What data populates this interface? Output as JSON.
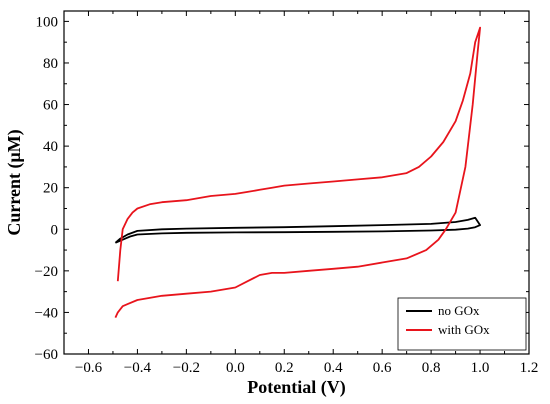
{
  "chart_data": {
    "type": "line",
    "xlabel": "Potential (V)",
    "ylabel": "Current (μM)",
    "xlim": [
      -0.7,
      1.2
    ],
    "ylim": [
      -60,
      105
    ],
    "xticks": [
      -0.6,
      -0.4,
      -0.2,
      0.0,
      0.2,
      0.4,
      0.6,
      0.8,
      1.0,
      1.2
    ],
    "xtick_labels": [
      "−0.6",
      "−0.4",
      "−0.2",
      "0.0",
      "0.2",
      "0.4",
      "0.6",
      "0.8",
      "1.0",
      "1.2"
    ],
    "yticks": [
      -60,
      -40,
      -20,
      0,
      20,
      40,
      60,
      80,
      100
    ],
    "ytick_labels": [
      "−60",
      "−40",
      "−20",
      "0",
      "20",
      "40",
      "60",
      "80",
      "100"
    ],
    "legend_position": "bottom-right",
    "grid": false,
    "series": [
      {
        "name": "no GOx",
        "color": "#000000",
        "x": [
          -0.49,
          -0.46,
          -0.43,
          -0.4,
          -0.3,
          -0.2,
          0.0,
          0.2,
          0.4,
          0.6,
          0.8,
          0.9,
          0.95,
          0.98,
          1.0,
          0.98,
          0.95,
          0.9,
          0.8,
          0.6,
          0.4,
          0.2,
          0.0,
          -0.2,
          -0.3,
          -0.4,
          -0.44,
          -0.47,
          -0.49
        ],
        "y": [
          -6.5,
          -5,
          -3.5,
          -2.5,
          -2,
          -1.7,
          -1.5,
          -1.4,
          -1.2,
          -1.0,
          -0.6,
          -0.2,
          0.3,
          1.0,
          2.0,
          5.5,
          4.5,
          3.5,
          2.6,
          2.0,
          1.5,
          1.0,
          0.7,
          0.3,
          0,
          -0.8,
          -2.5,
          -4.5,
          -6.5
        ]
      },
      {
        "name": "with GOx",
        "color": "#e8141c",
        "x": [
          -0.49,
          -0.48,
          -0.46,
          -0.44,
          -0.4,
          -0.35,
          -0.3,
          -0.2,
          -0.1,
          0.0,
          0.05,
          0.1,
          0.15,
          0.2,
          0.3,
          0.4,
          0.5,
          0.6,
          0.7,
          0.78,
          0.83,
          0.86,
          0.9,
          0.94,
          0.97,
          0.99,
          1.0,
          0.98,
          0.96,
          0.93,
          0.9,
          0.85,
          0.8,
          0.75,
          0.7,
          0.6,
          0.5,
          0.4,
          0.3,
          0.2,
          0.15,
          0.1,
          0.05,
          0.0,
          -0.1,
          -0.2,
          -0.3,
          -0.35,
          -0.4,
          -0.42,
          -0.44,
          -0.46,
          -0.47,
          -0.48
        ],
        "y": [
          -42.5,
          -40,
          -37,
          -36,
          -34,
          -33,
          -32,
          -31,
          -30,
          -28,
          -25,
          -22,
          -21,
          -21,
          -20,
          -19,
          -18,
          -16,
          -14,
          -10,
          -5,
          0,
          8,
          30,
          60,
          85,
          97,
          90,
          75,
          62,
          52,
          42,
          35,
          30,
          27,
          25,
          24,
          23,
          22,
          21,
          20,
          19,
          18,
          17,
          16,
          14,
          13,
          12,
          10,
          8,
          5,
          0,
          -10,
          -25
        ]
      }
    ]
  }
}
